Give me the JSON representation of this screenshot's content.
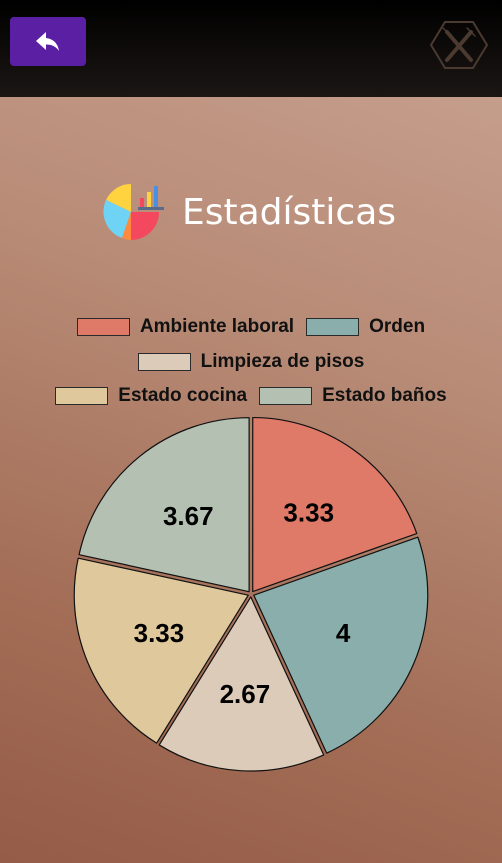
{
  "header": {
    "back_icon": "reply-arrow-icon",
    "logo_icon": "crossed-fork-knife-icon"
  },
  "title": {
    "icon": "pie-chart-icon",
    "text": "Estadísticas"
  },
  "colors": {
    "topbar": "#0a0807",
    "back_button": "#5b1fa3",
    "slice_colors": [
      "#e07a68",
      "#8aaeab",
      "#dccbb9",
      "#dfc99c",
      "#b4c0b2"
    ]
  },
  "chart_data": {
    "type": "pie",
    "title": "",
    "legend_position": "top",
    "categories": [
      "Ambiente laboral",
      "Orden",
      "Limpieza de pisos",
      "Estado cocina",
      "Estado baños"
    ],
    "values": [
      3.33,
      4,
      2.67,
      3.33,
      3.67
    ],
    "labels": [
      "3.33",
      "4",
      "2.67",
      "3.33",
      "3.67"
    ],
    "colors": [
      "#e07a68",
      "#8aaeab",
      "#dccbb9",
      "#dfc99c",
      "#b4c0b2"
    ]
  }
}
